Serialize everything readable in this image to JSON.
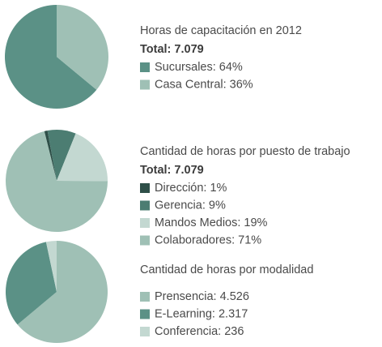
{
  "chart_data": [
    {
      "type": "pie",
      "title": "Horas de capacitación en 2012",
      "subtitle": "Total: 7.079",
      "categories": [
        "Sucursales: 64%",
        "Casa Central: 36%"
      ],
      "values": [
        64,
        36
      ],
      "colors": [
        "#5b9186",
        "#9fc0b5"
      ],
      "start_angle": 0,
      "direction": "counterclockwise"
    },
    {
      "type": "pie",
      "title": "Cantidad de horas por puesto de trabajo",
      "subtitle": "Total: 7.079",
      "categories": [
        "Dirección: 1%",
        "Gerencia: 9%",
        "Mandos Medios: 19%",
        "Colaboradores: 71%"
      ],
      "values": [
        1,
        9,
        19,
        71
      ],
      "colors": [
        "#2e4f48",
        "#4c7d72",
        "#c3d8d1",
        "#9fc0b5"
      ],
      "start_angle": -14,
      "direction": "clockwise"
    },
    {
      "type": "pie",
      "title": "Cantidad de horas por modalidad",
      "categories": [
        "Prensencia: 4.526",
        "E-Learning: 2.317",
        "Conferencia: 236"
      ],
      "values": [
        4526,
        2317,
        236
      ],
      "colors": [
        "#9fc0b5",
        "#5b9186",
        "#c3d8d1"
      ],
      "start_angle": 0,
      "direction": "clockwise"
    }
  ]
}
